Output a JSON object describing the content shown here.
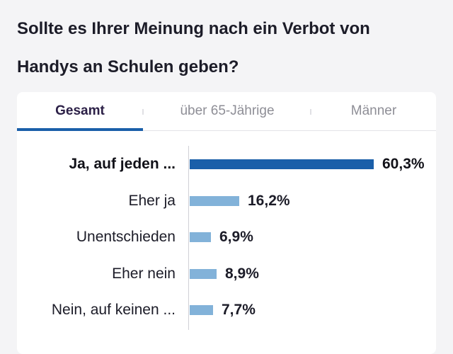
{
  "question": {
    "line1": "Sollte es Ihrer Meinung nach ein Verbot von",
    "line2": "Handys an Schulen geben?"
  },
  "tabs": [
    {
      "label": "Gesamt",
      "active": true
    },
    {
      "label": "über 65-Jährige",
      "active": false
    },
    {
      "label": "Männer",
      "active": false
    }
  ],
  "colors": {
    "accent": "#1a5fa9",
    "bar": "#82b2d9",
    "text": "#1c1c28",
    "inactive_tab": "#8e8e96"
  },
  "chart_data": {
    "type": "bar",
    "orientation": "horizontal",
    "categories": [
      "Ja, auf jeden ...",
      "Eher ja",
      "Unentschieden",
      "Eher nein",
      "Nein, auf keinen ..."
    ],
    "values": [
      60.3,
      16.2,
      6.9,
      8.9,
      7.7
    ],
    "value_labels": [
      "60,3%",
      "16,2%",
      "6,9%",
      "8,9%",
      "7,7%"
    ],
    "highlight_index": 0,
    "unit": "%",
    "xlim": [
      0,
      60.3
    ],
    "grid": false,
    "legend": "none"
  }
}
